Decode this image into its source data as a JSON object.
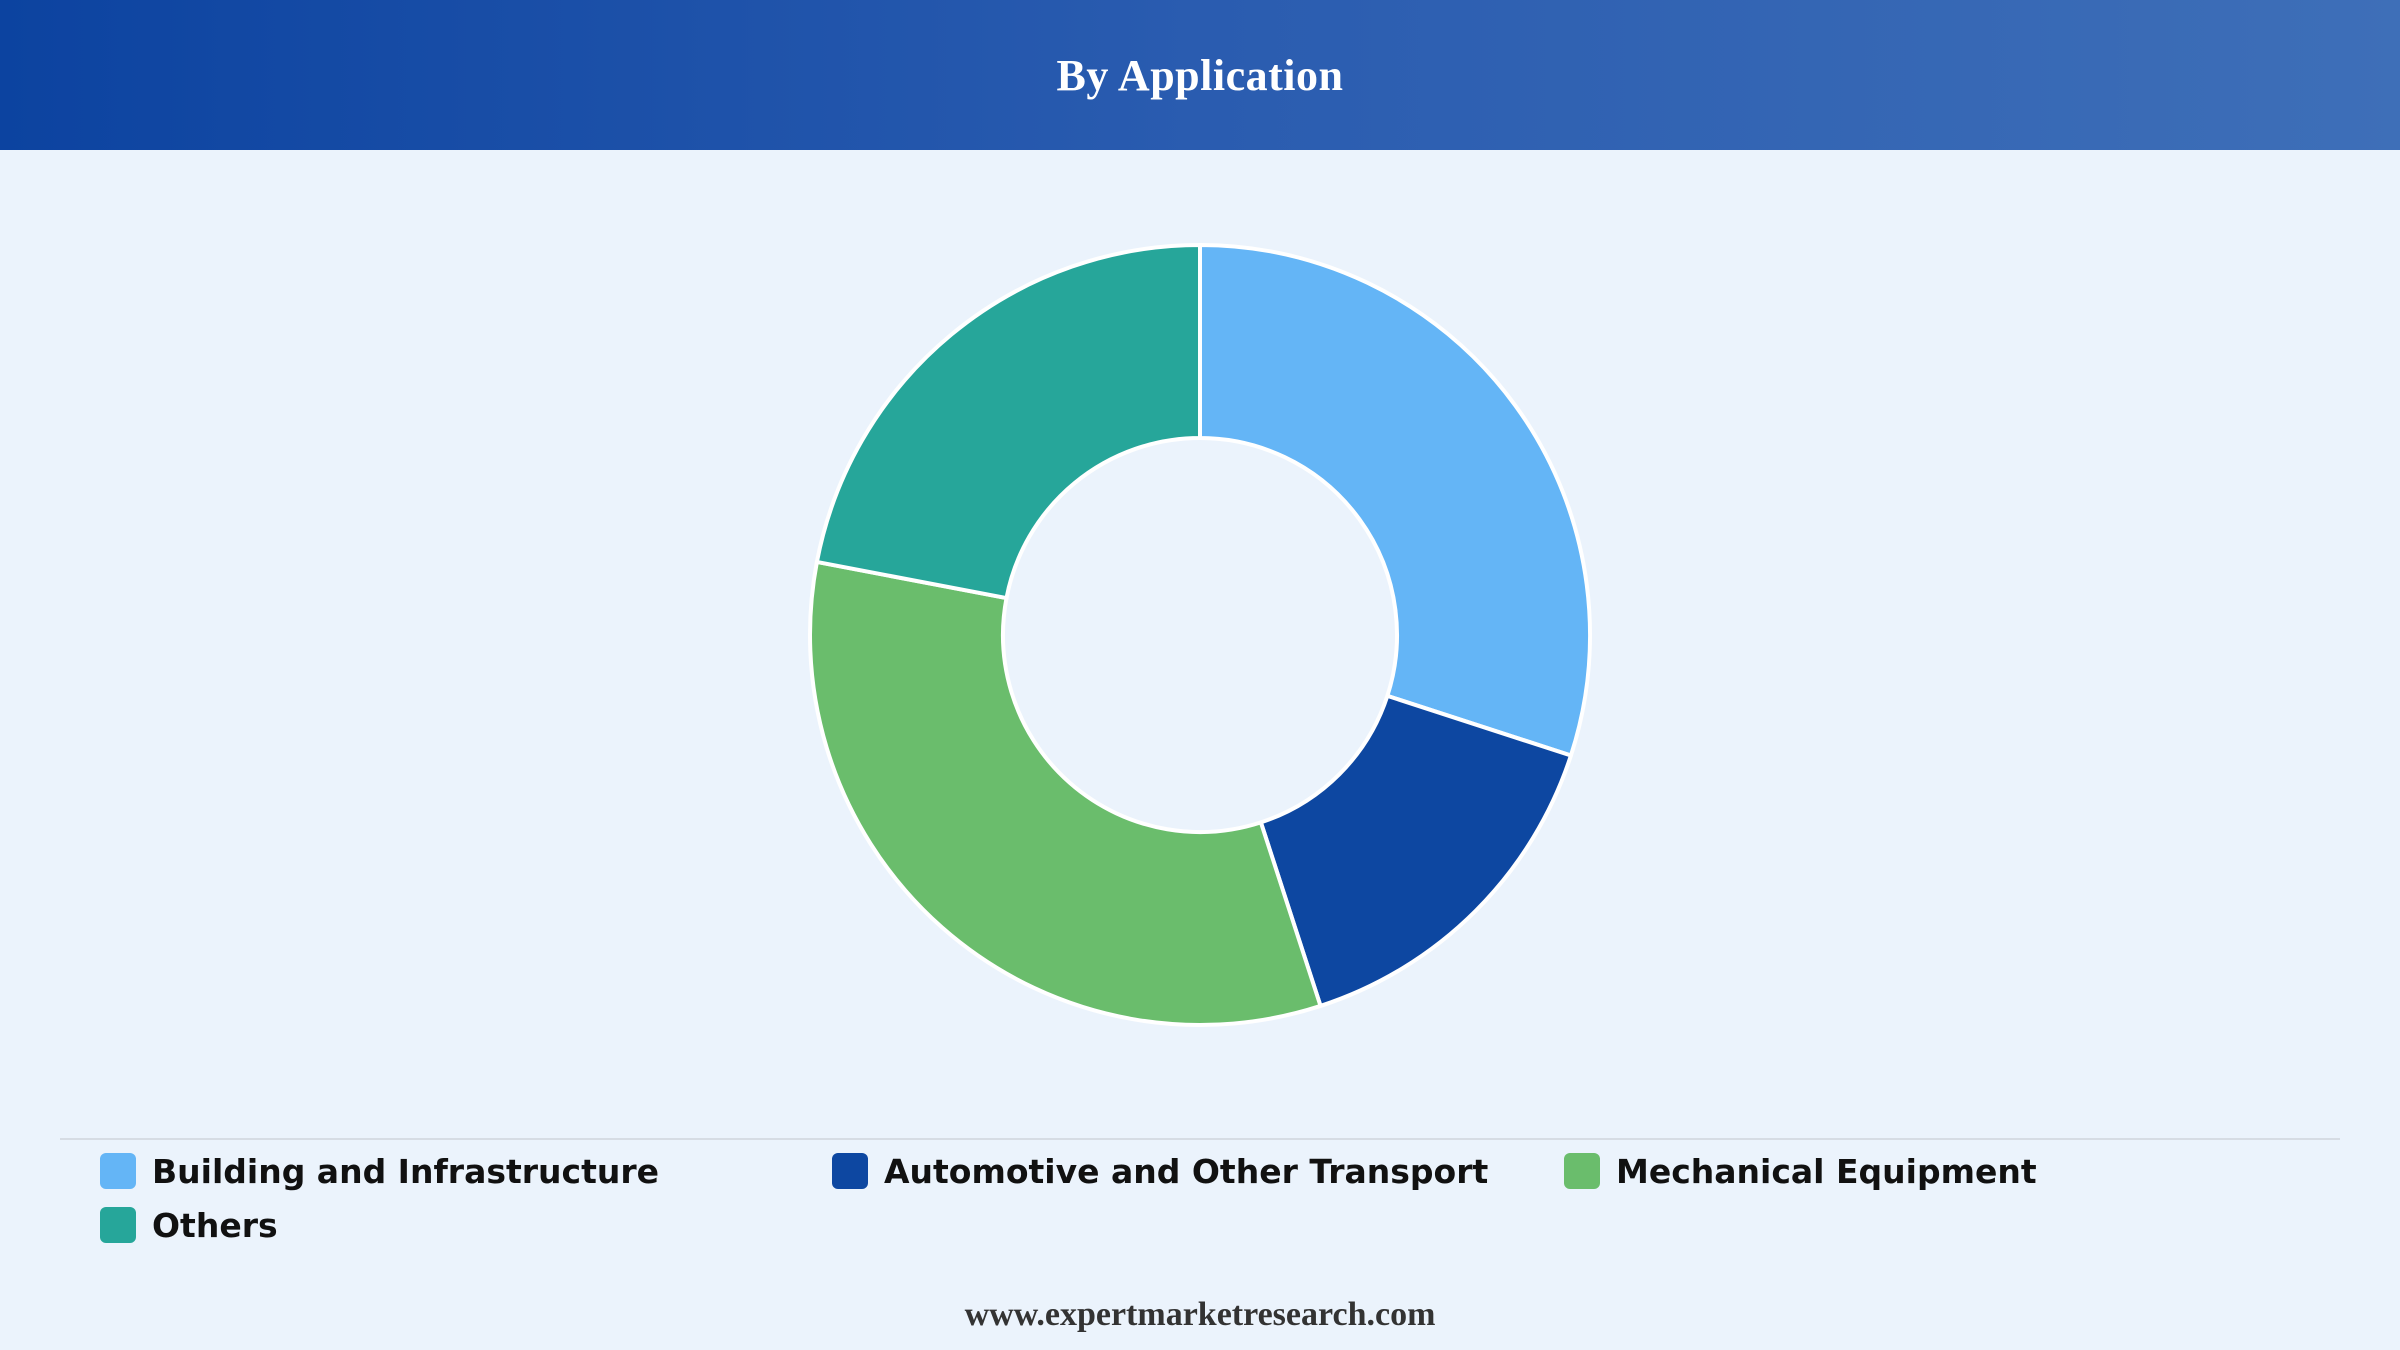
{
  "header": {
    "title": "By Application"
  },
  "chart_data": {
    "type": "pie",
    "donut": true,
    "categories": [
      "Building and Infrastructure",
      "Automotive and Other Transport",
      "Mechanical Equipment",
      "Others"
    ],
    "values": [
      30,
      15,
      33,
      22
    ],
    "colors": [
      "#64b5f6",
      "#0d47a1",
      "#6abd6c",
      "#26a69a"
    ],
    "legend_position": "bottom"
  },
  "legend": {
    "items": [
      {
        "label": "Building and Infrastructure",
        "color": "#64b5f6"
      },
      {
        "label": "Automotive and Other Transport",
        "color": "#0d47a1"
      },
      {
        "label": "Mechanical Equipment",
        "color": "#6abd6c"
      },
      {
        "label": "Others",
        "color": "#26a69a"
      }
    ]
  },
  "footer": {
    "text": "www.expertmarketresearch.com"
  }
}
